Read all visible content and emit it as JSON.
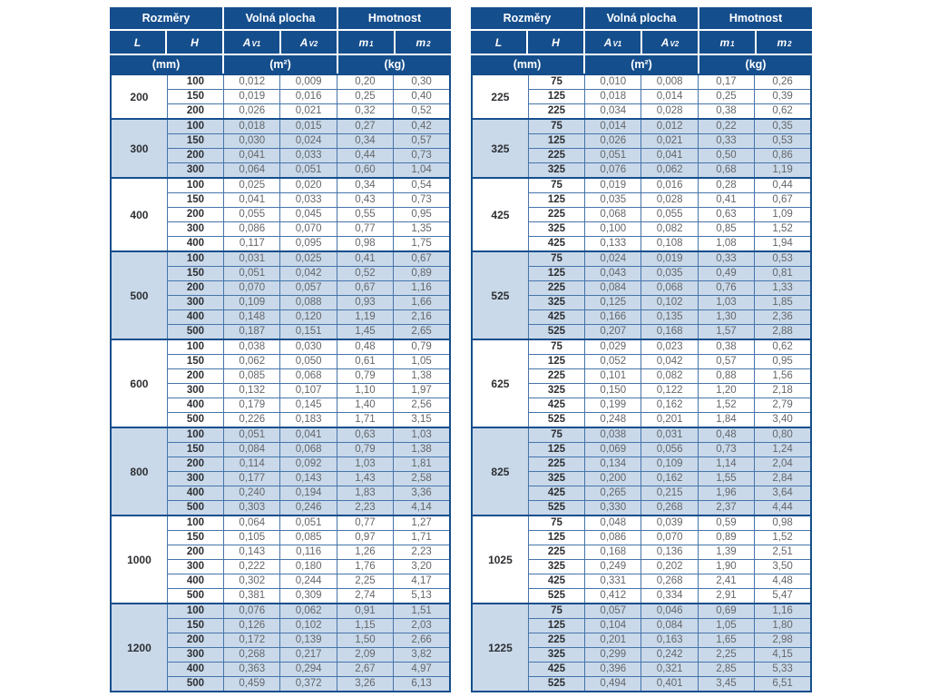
{
  "colors": {
    "header_bg": "#154e8c",
    "row_alt_bg": "#c9d9ea",
    "cell_border": "#4674aa",
    "group_border": "#154e8c",
    "value_text": "#64666a",
    "bold_text": "#2d2f33"
  },
  "columns": {
    "group_dims": "Rozměry",
    "group_area": "Volná plocha",
    "group_mass": "Hmotnost",
    "L": "L",
    "H": "H",
    "av1": {
      "base": "A",
      "sub": "V1"
    },
    "av2": {
      "base": "A",
      "sub": "V2"
    },
    "m1": {
      "base": "m",
      "sub": "1"
    },
    "m2": {
      "base": "m",
      "sub": "2"
    },
    "unit_mm": "(mm)",
    "unit_m2": "(m²)",
    "unit_kg": "(kg)"
  },
  "tables": [
    {
      "id": "left",
      "groups": [
        {
          "L": "200",
          "shaded": false,
          "rows": [
            [
              "100",
              "0,012",
              "0,009",
              "0,20",
              "0,30"
            ],
            [
              "150",
              "0,019",
              "0,016",
              "0,25",
              "0,40"
            ],
            [
              "200",
              "0,026",
              "0,021",
              "0,32",
              "0,52"
            ]
          ]
        },
        {
          "L": "300",
          "shaded": true,
          "rows": [
            [
              "100",
              "0,018",
              "0,015",
              "0,27",
              "0,42"
            ],
            [
              "150",
              "0,030",
              "0,024",
              "0,34",
              "0,57"
            ],
            [
              "200",
              "0,041",
              "0,033",
              "0,44",
              "0,73"
            ],
            [
              "300",
              "0,064",
              "0,051",
              "0,60",
              "1,04"
            ]
          ]
        },
        {
          "L": "400",
          "shaded": false,
          "rows": [
            [
              "100",
              "0,025",
              "0,020",
              "0,34",
              "0,54"
            ],
            [
              "150",
              "0,041",
              "0,033",
              "0,43",
              "0,73"
            ],
            [
              "200",
              "0,055",
              "0,045",
              "0,55",
              "0,95"
            ],
            [
              "300",
              "0,086",
              "0,070",
              "0,77",
              "1,35"
            ],
            [
              "400",
              "0,117",
              "0,095",
              "0,98",
              "1,75"
            ]
          ]
        },
        {
          "L": "500",
          "shaded": true,
          "rows": [
            [
              "100",
              "0,031",
              "0,025",
              "0,41",
              "0,67"
            ],
            [
              "150",
              "0,051",
              "0,042",
              "0,52",
              "0,89"
            ],
            [
              "200",
              "0,070",
              "0,057",
              "0,67",
              "1,16"
            ],
            [
              "300",
              "0,109",
              "0,088",
              "0,93",
              "1,66"
            ],
            [
              "400",
              "0,148",
              "0,120",
              "1,19",
              "2,16"
            ],
            [
              "500",
              "0,187",
              "0,151",
              "1,45",
              "2,65"
            ]
          ]
        },
        {
          "L": "600",
          "shaded": false,
          "rows": [
            [
              "100",
              "0,038",
              "0,030",
              "0,48",
              "0,79"
            ],
            [
              "150",
              "0,062",
              "0,050",
              "0,61",
              "1,05"
            ],
            [
              "200",
              "0,085",
              "0,068",
              "0,79",
              "1,38"
            ],
            [
              "300",
              "0,132",
              "0,107",
              "1,10",
              "1,97"
            ],
            [
              "400",
              "0,179",
              "0,145",
              "1,40",
              "2,56"
            ],
            [
              "500",
              "0,226",
              "0,183",
              "1,71",
              "3,15"
            ]
          ]
        },
        {
          "L": "800",
          "shaded": true,
          "rows": [
            [
              "100",
              "0,051",
              "0,041",
              "0,63",
              "1,03"
            ],
            [
              "150",
              "0,084",
              "0,068",
              "0,79",
              "1,38"
            ],
            [
              "200",
              "0,114",
              "0,092",
              "1,03",
              "1,81"
            ],
            [
              "300",
              "0,177",
              "0,143",
              "1,43",
              "2,58"
            ],
            [
              "400",
              "0,240",
              "0,194",
              "1,83",
              "3,36"
            ],
            [
              "500",
              "0,303",
              "0,246",
              "2,23",
              "4,14"
            ]
          ]
        },
        {
          "L": "1000",
          "shaded": false,
          "rows": [
            [
              "100",
              "0,064",
              "0,051",
              "0,77",
              "1,27"
            ],
            [
              "150",
              "0,105",
              "0,085",
              "0,97",
              "1,71"
            ],
            [
              "200",
              "0,143",
              "0,116",
              "1,26",
              "2,23"
            ],
            [
              "300",
              "0,222",
              "0,180",
              "1,76",
              "3,20"
            ],
            [
              "400",
              "0,302",
              "0,244",
              "2,25",
              "4,17"
            ],
            [
              "500",
              "0,381",
              "0,309",
              "2,74",
              "5,13"
            ]
          ]
        },
        {
          "L": "1200",
          "shaded": true,
          "rows": [
            [
              "100",
              "0,076",
              "0,062",
              "0,91",
              "1,51"
            ],
            [
              "150",
              "0,126",
              "0,102",
              "1,15",
              "2,03"
            ],
            [
              "200",
              "0,172",
              "0,139",
              "1,50",
              "2,66"
            ],
            [
              "300",
              "0,268",
              "0,217",
              "2,09",
              "3,82"
            ],
            [
              "400",
              "0,363",
              "0,294",
              "2,67",
              "4,97"
            ],
            [
              "500",
              "0,459",
              "0,372",
              "3,26",
              "6,13"
            ]
          ]
        }
      ]
    },
    {
      "id": "right",
      "groups": [
        {
          "L": "225",
          "shaded": false,
          "rows": [
            [
              "75",
              "0,010",
              "0,008",
              "0,17",
              "0,26"
            ],
            [
              "125",
              "0,018",
              "0,014",
              "0,25",
              "0,39"
            ],
            [
              "225",
              "0,034",
              "0,028",
              "0,38",
              "0,62"
            ]
          ]
        },
        {
          "L": "325",
          "shaded": true,
          "rows": [
            [
              "75",
              "0,014",
              "0,012",
              "0,22",
              "0,35"
            ],
            [
              "125",
              "0,026",
              "0,021",
              "0,33",
              "0,53"
            ],
            [
              "225",
              "0,051",
              "0,041",
              "0,50",
              "0,86"
            ],
            [
              "325",
              "0,076",
              "0,062",
              "0,68",
              "1,19"
            ]
          ]
        },
        {
          "L": "425",
          "shaded": false,
          "rows": [
            [
              "75",
              "0,019",
              "0,016",
              "0,28",
              "0,44"
            ],
            [
              "125",
              "0,035",
              "0,028",
              "0,41",
              "0,67"
            ],
            [
              "225",
              "0,068",
              "0,055",
              "0,63",
              "1,09"
            ],
            [
              "325",
              "0,100",
              "0,082",
              "0,85",
              "1,52"
            ],
            [
              "425",
              "0,133",
              "0,108",
              "1,08",
              "1,94"
            ]
          ]
        },
        {
          "L": "525",
          "shaded": true,
          "rows": [
            [
              "75",
              "0,024",
              "0,019",
              "0,33",
              "0,53"
            ],
            [
              "125",
              "0,043",
              "0,035",
              "0,49",
              "0,81"
            ],
            [
              "225",
              "0,084",
              "0,068",
              "0,76",
              "1,33"
            ],
            [
              "325",
              "0,125",
              "0,102",
              "1,03",
              "1,85"
            ],
            [
              "425",
              "0,166",
              "0,135",
              "1,30",
              "2,36"
            ],
            [
              "525",
              "0,207",
              "0,168",
              "1,57",
              "2,88"
            ]
          ]
        },
        {
          "L": "625",
          "shaded": false,
          "rows": [
            [
              "75",
              "0,029",
              "0,023",
              "0,38",
              "0,62"
            ],
            [
              "125",
              "0,052",
              "0,042",
              "0,57",
              "0,95"
            ],
            [
              "225",
              "0,101",
              "0,082",
              "0,88",
              "1,56"
            ],
            [
              "325",
              "0,150",
              "0,122",
              "1,20",
              "2,18"
            ],
            [
              "425",
              "0,199",
              "0,162",
              "1,52",
              "2,79"
            ],
            [
              "525",
              "0,248",
              "0,201",
              "1,84",
              "3,40"
            ]
          ]
        },
        {
          "L": "825",
          "shaded": true,
          "rows": [
            [
              "75",
              "0,038",
              "0,031",
              "0,48",
              "0,80"
            ],
            [
              "125",
              "0,069",
              "0,056",
              "0,73",
              "1,24"
            ],
            [
              "225",
              "0,134",
              "0,109",
              "1,14",
              "2,04"
            ],
            [
              "325",
              "0,200",
              "0,162",
              "1,55",
              "2,84"
            ],
            [
              "425",
              "0,265",
              "0,215",
              "1,96",
              "3,64"
            ],
            [
              "525",
              "0,330",
              "0,268",
              "2,37",
              "4,44"
            ]
          ]
        },
        {
          "L": "1025",
          "shaded": false,
          "rows": [
            [
              "75",
              "0,048",
              "0,039",
              "0,59",
              "0,98"
            ],
            [
              "125",
              "0,086",
              "0,070",
              "0,89",
              "1,52"
            ],
            [
              "225",
              "0,168",
              "0,136",
              "1,39",
              "2,51"
            ],
            [
              "325",
              "0,249",
              "0,202",
              "1,90",
              "3,50"
            ],
            [
              "425",
              "0,331",
              "0,268",
              "2,41",
              "4,48"
            ],
            [
              "525",
              "0,412",
              "0,334",
              "2,91",
              "5,47"
            ]
          ]
        },
        {
          "L": "1225",
          "shaded": true,
          "rows": [
            [
              "75",
              "0,057",
              "0,046",
              "0,69",
              "1,16"
            ],
            [
              "125",
              "0,104",
              "0,084",
              "1,05",
              "1,80"
            ],
            [
              "225",
              "0,201",
              "0,163",
              "1,65",
              "2,98"
            ],
            [
              "325",
              "0,299",
              "0,242",
              "2,25",
              "4,15"
            ],
            [
              "425",
              "0,396",
              "0,321",
              "2,85",
              "5,33"
            ],
            [
              "525",
              "0,494",
              "0,401",
              "3,45",
              "6,51"
            ]
          ]
        }
      ]
    }
  ]
}
